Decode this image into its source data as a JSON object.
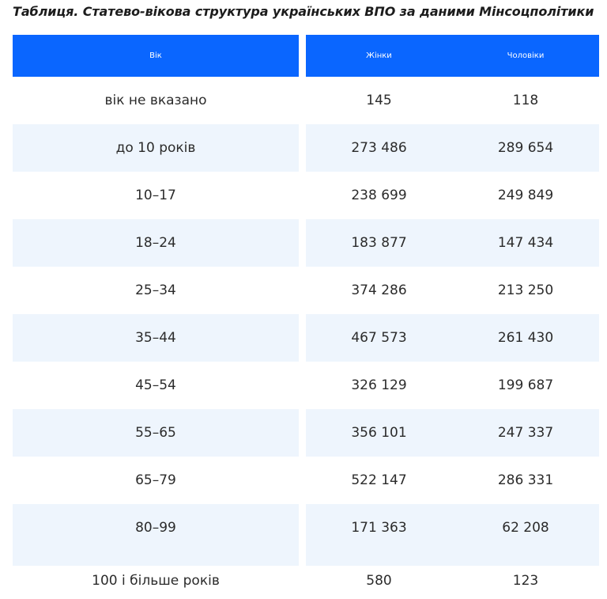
{
  "title": "Таблиця. Статево-вікова структура українських ВПО за даними Мінсоцполітики",
  "table": {
    "headers": [
      "Вік",
      "Жінки",
      "Чоловіки"
    ],
    "rows": [
      {
        "age": "вік не вказано",
        "women": "145",
        "men": "118"
      },
      {
        "age": "до 10 років",
        "women": "273 486",
        "men": "289 654"
      },
      {
        "age": "10–17",
        "women": "238 699",
        "men": "249 849"
      },
      {
        "age": "18–24",
        "women": "183 877",
        "men": "147 434"
      },
      {
        "age": "25–34",
        "women": "374 286",
        "men": "213 250"
      },
      {
        "age": "35–44",
        "women": "467 573",
        "men": "261 430"
      },
      {
        "age": "45–54",
        "women": "326 129",
        "men": "199 687"
      },
      {
        "age": "55–65",
        "women": "356 101",
        "men": "247 337"
      },
      {
        "age": "65–79",
        "women": "522 147",
        "men": "286 331"
      },
      {
        "age": "80–99",
        "women": "171 363",
        "men": "62 208"
      },
      {
        "age": "100 і більше років",
        "women": "580",
        "men": "123"
      }
    ]
  },
  "colors": {
    "header_bg": "#0a66ff",
    "header_text": "#ffffff",
    "stripe_bg": "#eef5fd",
    "body_text": "#2b2b2b"
  }
}
